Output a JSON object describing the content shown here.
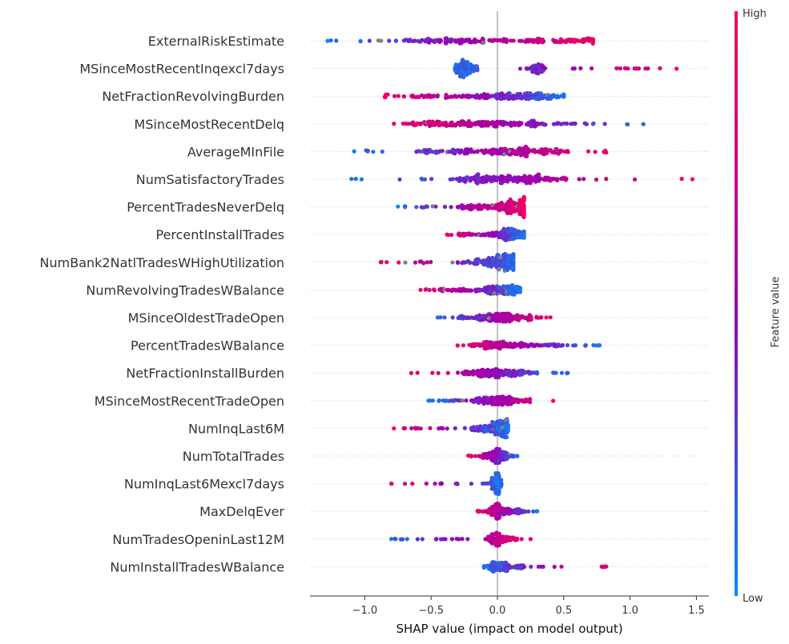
{
  "chart_data": {
    "type": "scatter",
    "subtype": "shap-beeswarm",
    "title": "",
    "xlabel": "SHAP value (impact on model output)",
    "xlim": [
      -1.42,
      1.6
    ],
    "xticks": [
      -1.0,
      -0.5,
      0.0,
      0.5,
      1.0,
      1.5
    ],
    "xtick_labels": [
      "−1.0",
      "−0.5",
      "0.0",
      "0.5",
      "1.0",
      "1.5"
    ],
    "colorbar": {
      "label": "Feature value",
      "high": "High",
      "low": "Low",
      "high_color": "#ff0052",
      "mid_color": "#9b00b2",
      "low_color": "#008bfb"
    },
    "missing_color": "#808080",
    "grid": false,
    "features": [
      {
        "name": "ExternalRiskEstimate",
        "min": -1.28,
        "max": 0.72,
        "dense": [
          -0.55,
          0.7
        ],
        "peaks": [
          -0.45,
          0.5
        ],
        "corr": 1,
        "spread": 0.75
      },
      {
        "name": "MSinceMostRecentInqexcl7days",
        "min": -0.32,
        "max": 1.35,
        "dense": [
          -0.32,
          -0.15
        ],
        "peaks": [
          -0.25,
          0.3
        ],
        "corr": 1,
        "spread": 0.55,
        "gap": [
          -0.12,
          0.02
        ]
      },
      {
        "name": "NetFractionRevolvingBurden",
        "min": -0.85,
        "max": 0.5,
        "dense": [
          -0.65,
          0.4
        ],
        "peaks": [
          0.1,
          0.3
        ],
        "corr": -1,
        "spread": 0.8
      },
      {
        "name": "MSinceMostRecentDelq",
        "min": -0.78,
        "max": 1.1,
        "dense": [
          -0.65,
          0.35
        ],
        "peaks": [
          -0.3,
          0.2
        ],
        "corr": -1,
        "spread": 0.85
      },
      {
        "name": "AverageMInFile",
        "min": -1.08,
        "max": 0.82,
        "dense": [
          -0.6,
          0.55
        ],
        "peaks": [
          0.0,
          0.2
        ],
        "corr": 1,
        "spread": 0.85
      },
      {
        "name": "NumSatisfactoryTrades",
        "min": -1.1,
        "max": 1.47,
        "dense": [
          -0.3,
          0.4
        ],
        "peaks": [
          -0.1,
          0.25
        ],
        "corr": 1,
        "spread": 0.85
      },
      {
        "name": "PercentTradesNeverDelq",
        "min": -0.75,
        "max": 0.2,
        "dense": [
          -0.3,
          0.2
        ],
        "peaks": [
          0.15
        ],
        "corr": 1,
        "spread": 0.8
      },
      {
        "name": "PercentInstallTrades",
        "min": -0.38,
        "max": 0.2,
        "dense": [
          -0.3,
          0.15
        ],
        "peaks": [
          0.1
        ],
        "corr": -1,
        "spread": 0.5
      },
      {
        "name": "NumBank2NatlTradesWHighUtilization",
        "min": -0.88,
        "max": 0.12,
        "dense": [
          -0.3,
          0.1
        ],
        "peaks": [
          0.05
        ],
        "corr": -1,
        "spread": 0.7
      },
      {
        "name": "NumRevolvingTradesWBalance",
        "min": -0.58,
        "max": 0.17,
        "dense": [
          -0.45,
          0.15
        ],
        "peaks": [
          0.05
        ],
        "corr": -1,
        "spread": 0.55
      },
      {
        "name": "MSinceOldestTradeOpen",
        "min": -0.45,
        "max": 0.4,
        "dense": [
          -0.3,
          0.3
        ],
        "peaks": [
          0.0
        ],
        "corr": 1,
        "spread": 0.5
      },
      {
        "name": "PercentTradesWBalance",
        "min": -0.3,
        "max": 0.77,
        "dense": [
          -0.15,
          0.5
        ],
        "peaks": [
          -0.05,
          0.05
        ],
        "corr": -1,
        "spread": 0.45
      },
      {
        "name": "NetFractionInstallBurden",
        "min": -0.65,
        "max": 0.53,
        "dense": [
          -0.25,
          0.3
        ],
        "peaks": [
          -0.05,
          0.05
        ],
        "corr": -1,
        "spread": 0.55
      },
      {
        "name": "MSinceMostRecentTradeOpen",
        "min": -0.52,
        "max": 0.42,
        "dense": [
          -0.2,
          0.25
        ],
        "peaks": [
          0.0
        ],
        "corr": 1,
        "spread": 0.45
      },
      {
        "name": "NumInqLast6M",
        "min": -0.78,
        "max": 0.08,
        "dense": [
          -0.2,
          0.08
        ],
        "peaks": [
          0.03
        ],
        "corr": -1,
        "spread": 0.6
      },
      {
        "name": "NumTotalTrades",
        "min": -0.22,
        "max": 0.15,
        "dense": [
          -0.12,
          0.12
        ],
        "peaks": [
          0.0
        ],
        "corr": -1,
        "spread": 0.35
      },
      {
        "name": "NumInqLast6Mexcl7days",
        "min": -0.8,
        "max": 0.03,
        "dense": [
          -0.05,
          0.03
        ],
        "peaks": [
          0.0
        ],
        "corr": -1,
        "spread": 0.3
      },
      {
        "name": "MaxDelqEver",
        "min": -0.15,
        "max": 0.3,
        "dense": [
          -0.05,
          0.2
        ],
        "peaks": [
          0.0
        ],
        "corr": -1,
        "spread": 0.35
      },
      {
        "name": "NumTradesOpeninLast12M",
        "min": -0.8,
        "max": 0.25,
        "dense": [
          -0.05,
          0.15
        ],
        "peaks": [
          0.0
        ],
        "corr": 1,
        "spread": 0.3
      },
      {
        "name": "NumInstallTradesWBalance",
        "min": -0.1,
        "max": 0.82,
        "dense": [
          -0.05,
          0.2
        ],
        "peaks": [
          0.0
        ],
        "corr": 1,
        "spread": 0.3
      }
    ]
  }
}
